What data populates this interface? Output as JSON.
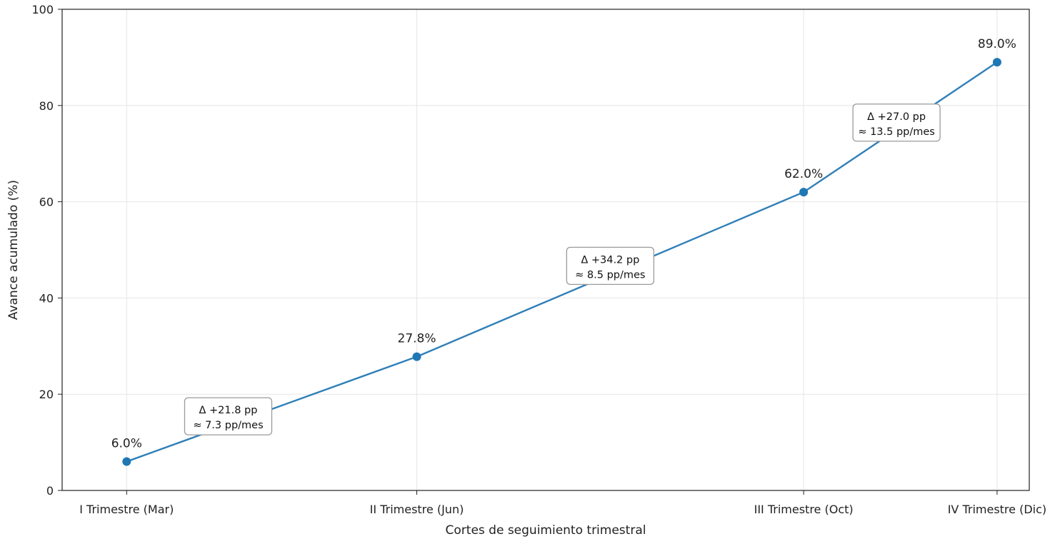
{
  "chart_data": {
    "type": "line",
    "categories": [
      "I Trimestre (Mar)",
      "II Trimestre (Jun)",
      "III Trimestre (Oct)",
      "IV Trimestre (Dic)"
    ],
    "x_months": [
      3,
      6,
      10,
      12
    ],
    "values": [
      6.0,
      27.8,
      62.0,
      89.0
    ],
    "value_labels": [
      "6.0%",
      "27.8%",
      "62.0%",
      "89.0%"
    ],
    "xlabel": "Cortes de seguimiento trimestral",
    "ylabel": "Avance acumulado (%)",
    "ylim": [
      0,
      100
    ],
    "yticks": [
      0,
      20,
      40,
      60,
      80,
      100
    ],
    "grid": true,
    "line_color": "#2f7fb8",
    "marker_color": "#1f77b4",
    "annotations": [
      {
        "line1": "Δ +21.8 pp",
        "line2": "≈ 7.3 pp/mes"
      },
      {
        "line1": "Δ +34.2 pp",
        "line2": "≈ 8.5 pp/mes"
      },
      {
        "line1": "Δ +27.0 pp",
        "line2": "≈ 13.5 pp/mes"
      }
    ]
  }
}
